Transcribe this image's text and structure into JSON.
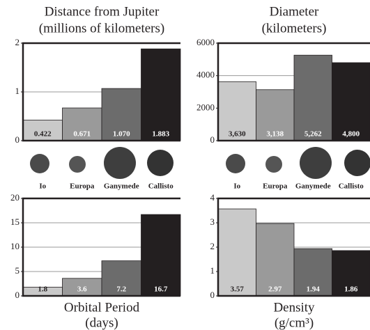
{
  "chart_data": [
    {
      "type": "bar",
      "title": "Distance from Jupiter",
      "subtitle": "(millions of kilometers)",
      "categories": [
        "Io",
        "Europa",
        "Ganymede",
        "Callisto"
      ],
      "values": [
        0.422,
        0.671,
        1.07,
        1.883
      ],
      "value_labels": [
        "0.422",
        "0.671",
        "1.070",
        "1.883"
      ],
      "colors": [
        "#c9c9c9",
        "#9a9a9a",
        "#6c6c6c",
        "#231f20"
      ],
      "ylim": [
        0,
        2
      ],
      "yticks": [
        0,
        1,
        2
      ],
      "grid": true
    },
    {
      "type": "bar",
      "title": "Diameter",
      "subtitle": "(kilometers)",
      "categories": [
        "Io",
        "Europa",
        "Ganymede",
        "Callisto"
      ],
      "values": [
        3630,
        3138,
        5262,
        4800
      ],
      "value_labels": [
        "3,630",
        "3,138",
        "5,262",
        "4,800"
      ],
      "colors": [
        "#c9c9c9",
        "#9a9a9a",
        "#6c6c6c",
        "#231f20"
      ],
      "ylim": [
        0,
        6000
      ],
      "yticks": [
        0,
        2000,
        4000,
        6000
      ],
      "grid": true
    },
    {
      "type": "bar",
      "title": "Orbital Period",
      "subtitle": "(days)",
      "values": [
        1.8,
        3.6,
        7.2,
        16.7
      ],
      "colors": [
        "#c9c9c9",
        "#9a9a9a",
        "#6c6c6c",
        "#231f20"
      ],
      "ylim": [
        0,
        20
      ],
      "yticks": [
        0,
        5,
        10,
        15,
        20
      ],
      "grid": true
    },
    {
      "type": "bar",
      "title": "Density",
      "subtitle": "(g/cm³)",
      "values": [
        3.57,
        2.97,
        1.94,
        1.86
      ],
      "colors": [
        "#c9c9c9",
        "#9a9a9a",
        "#6c6c6c",
        "#231f20"
      ],
      "ylim": [
        0,
        4
      ],
      "yticks": [
        0,
        1,
        2,
        3,
        4
      ],
      "grid": true
    }
  ]
}
